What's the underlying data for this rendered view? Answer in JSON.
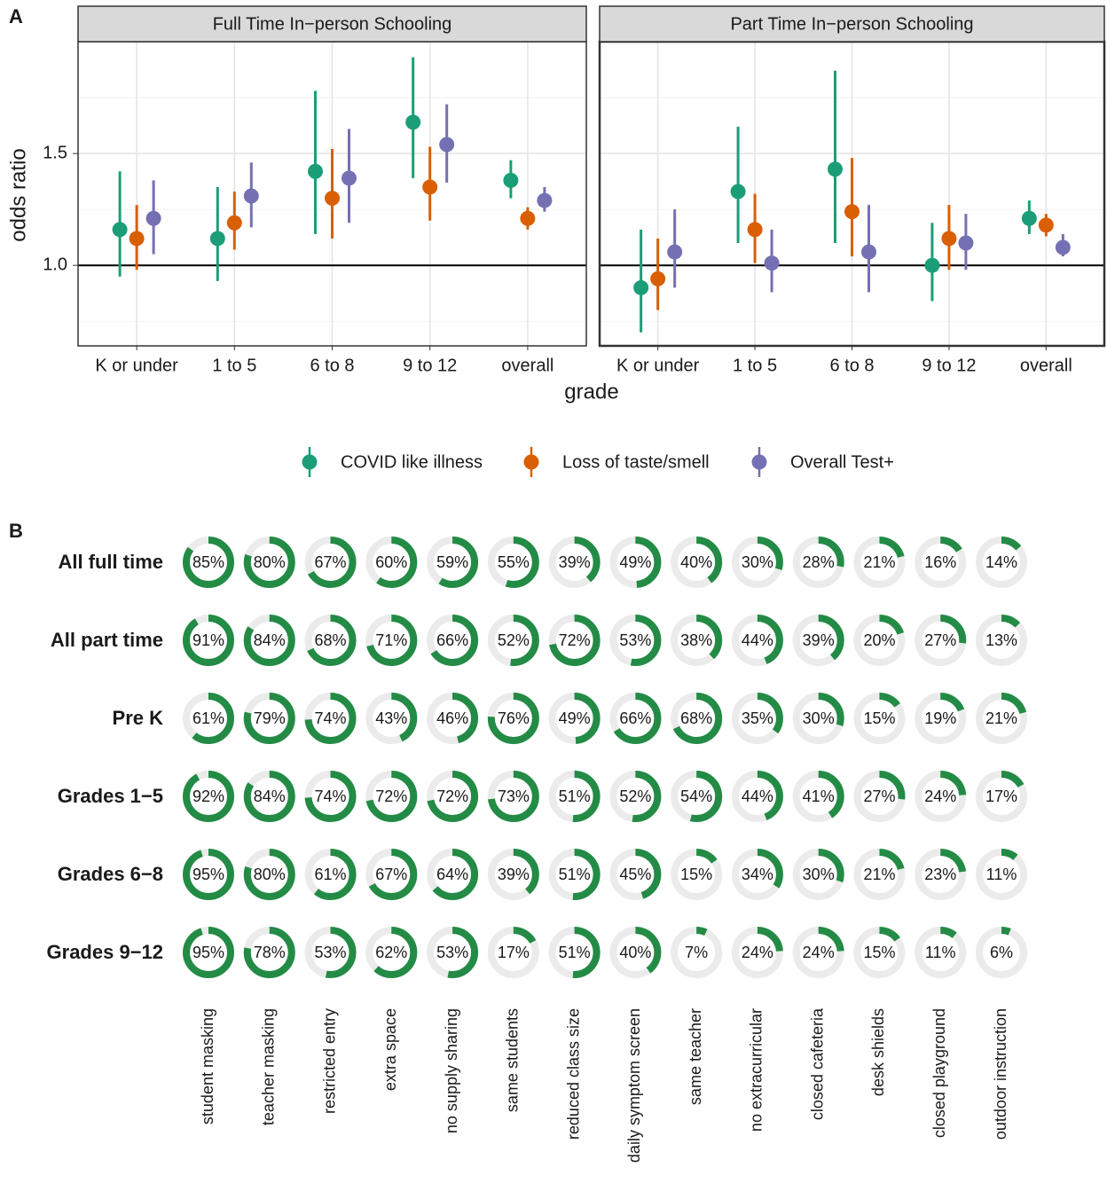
{
  "chart_data": [
    {
      "type": "pointrange",
      "panel_label": "A",
      "categories": [
        "K or under",
        "1 to 5",
        "6 to 8",
        "9 to 12",
        "overall"
      ],
      "xlabel": "grade",
      "ylabel": "odds ratio",
      "ylim": [
        0.64,
        2.0
      ],
      "yticks": [
        {
          "value": 1,
          "label": "1.0"
        },
        {
          "value": 1.5,
          "label": "1.5"
        }
      ],
      "minor_yticks": [
        0.75,
        1.25,
        1.75
      ],
      "hline": 1,
      "grid": true,
      "legend": "bottom",
      "series": [
        {
          "name": "COVID like illness",
          "color": "#1b9e77"
        },
        {
          "name": "Loss of taste/smell",
          "color": "#d95f02"
        },
        {
          "name": "Overall Test+",
          "color": "#7570b3"
        }
      ],
      "facets": [
        {
          "title": "Full Time In−person Schooling",
          "series": [
            {
              "values": [
                1.16,
                1.12,
                1.42,
                1.64,
                1.38
              ],
              "lower": [
                0.95,
                0.93,
                1.14,
                1.39,
                1.3
              ],
              "upper": [
                1.42,
                1.35,
                1.78,
                1.93,
                1.47
              ]
            },
            {
              "values": [
                1.12,
                1.19,
                1.3,
                1.35,
                1.21
              ],
              "lower": [
                0.98,
                1.07,
                1.12,
                1.2,
                1.16
              ],
              "upper": [
                1.27,
                1.33,
                1.52,
                1.53,
                1.26
              ]
            },
            {
              "values": [
                1.21,
                1.31,
                1.39,
                1.54,
                1.29
              ],
              "lower": [
                1.05,
                1.17,
                1.19,
                1.37,
                1.24
              ],
              "upper": [
                1.38,
                1.46,
                1.61,
                1.72,
                1.35
              ]
            }
          ]
        },
        {
          "title": "Part Time In−person Schooling",
          "series": [
            {
              "values": [
                0.9,
                1.33,
                1.43,
                1.0,
                1.21
              ],
              "lower": [
                0.7,
                1.1,
                1.1,
                0.84,
                1.14
              ],
              "upper": [
                1.16,
                1.62,
                1.87,
                1.19,
                1.29
              ]
            },
            {
              "values": [
                0.94,
                1.16,
                1.24,
                1.12,
                1.18
              ],
              "lower": [
                0.8,
                1.01,
                1.04,
                0.98,
                1.13
              ],
              "upper": [
                1.12,
                1.32,
                1.48,
                1.27,
                1.23
              ]
            },
            {
              "values": [
                1.06,
                1.01,
                1.06,
                1.1,
                1.08
              ],
              "lower": [
                0.9,
                0.88,
                0.88,
                0.98,
                1.04
              ],
              "upper": [
                1.25,
                1.16,
                1.27,
                1.23,
                1.14
              ]
            }
          ]
        }
      ]
    },
    {
      "type": "donut",
      "panel_label": "B",
      "ylim": [
        0,
        100
      ],
      "color": "#238b45",
      "track_color": "#ebebeb",
      "rows": [
        "All full time",
        "All part time",
        "Pre K",
        "Grades 1−5",
        "Grades 6−8",
        "Grades 9−12"
      ],
      "columns": [
        "student masking",
        "teacher masking",
        "restricted entry",
        "extra space",
        "no supply sharing",
        "same students",
        "reduced class size",
        "daily symptom screen",
        "same teacher",
        "no extracurricular",
        "closed cafeteria",
        "desk shields",
        "closed playground",
        "outdoor instruction"
      ],
      "values": [
        [
          85,
          80,
          67,
          60,
          59,
          55,
          39,
          49,
          40,
          30,
          28,
          21,
          16,
          14
        ],
        [
          91,
          84,
          68,
          71,
          66,
          52,
          72,
          53,
          38,
          44,
          39,
          20,
          27,
          13
        ],
        [
          61,
          79,
          74,
          43,
          46,
          76,
          49,
          66,
          68,
          35,
          30,
          15,
          19,
          21
        ],
        [
          92,
          84,
          74,
          72,
          72,
          73,
          51,
          52,
          54,
          44,
          41,
          27,
          24,
          17
        ],
        [
          95,
          80,
          61,
          67,
          64,
          39,
          51,
          45,
          15,
          34,
          30,
          21,
          23,
          11
        ],
        [
          95,
          78,
          53,
          62,
          53,
          17,
          51,
          40,
          7,
          24,
          24,
          15,
          11,
          6
        ]
      ],
      "value_labels": [
        [
          "85%",
          "80%",
          "67%",
          "60%",
          "59%",
          "55%",
          "39%",
          "49%",
          "40%",
          "30%",
          "28%",
          "21%",
          "16%",
          "14%"
        ],
        [
          "91%",
          "84%",
          "68%",
          "71%",
          "66%",
          "52%",
          "72%",
          "53%",
          "38%",
          "44%",
          "39%",
          "20%",
          "27%",
          "13%"
        ],
        [
          "61%",
          "79%",
          "74%",
          "43%",
          "46%",
          "76%",
          "49%",
          "66%",
          "68%",
          "35%",
          "30%",
          "15%",
          "19%",
          "21%"
        ],
        [
          "92%",
          "84%",
          "74%",
          "72%",
          "72%",
          "73%",
          "51%",
          "52%",
          "54%",
          "44%",
          "41%",
          "27%",
          "24%",
          "17%"
        ],
        [
          "95%",
          "80%",
          "61%",
          "67%",
          "64%",
          "39%",
          "51%",
          "45%",
          "15%",
          "34%",
          "30%",
          "21%",
          "23%",
          "11%"
        ],
        [
          "95%",
          "78%",
          "53%",
          "62%",
          "53%",
          "17%",
          "51%",
          "40%",
          "7%",
          "24%",
          "24%",
          "15%",
          "11%",
          "6%"
        ]
      ]
    }
  ]
}
